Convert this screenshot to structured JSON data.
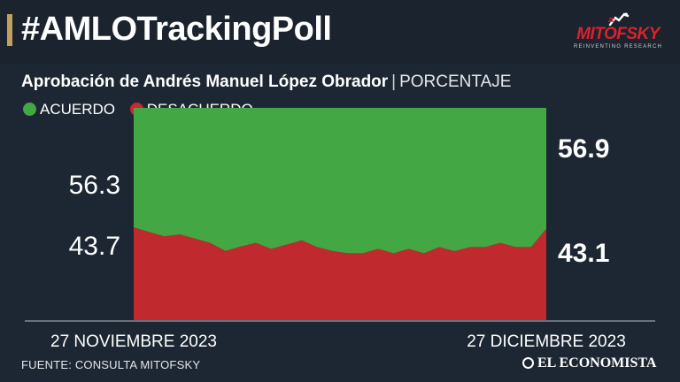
{
  "header": {
    "title": "#AMLOTrackingPoll",
    "logo": {
      "wordmark": "MITOFSKY",
      "tagline": "REINVENTING RESEARCH"
    }
  },
  "subtitle": {
    "main": "Aprobación de Andrés Manuel López Obrador",
    "separator": "|",
    "unit": "PORCENTAJE"
  },
  "legend": [
    {
      "label": "ACUERDO",
      "color": "#43a843"
    },
    {
      "label": "DESACUERDO",
      "color": "#d0262d"
    }
  ],
  "colors": {
    "background": "#1d2733",
    "header": "#1a232e",
    "accent": "#c4a15a",
    "agree": "#43a843",
    "disagree": "#c02a2f",
    "axis": "#b8bec6"
  },
  "chart_data": {
    "type": "area",
    "stacked": true,
    "ylim": [
      0,
      100
    ],
    "x_start_label": "27 NOVIEMBRE 2023",
    "x_end_label": "27 DICIEMBRE 2023",
    "series": [
      {
        "name": "ACUERDO",
        "color": "#43a843",
        "values": [
          56.3,
          58.4,
          60.5,
          59.6,
          61.6,
          63.6,
          67.4,
          65.3,
          63.6,
          66.4,
          64.4,
          62.4,
          65.6,
          67.4,
          68.5,
          68.5,
          66.4,
          68.5,
          66.4,
          68.5,
          65.6,
          67.5,
          65.6,
          65.6,
          63.6,
          65.6,
          65.6,
          56.9
        ]
      },
      {
        "name": "DESACUERDO",
        "color": "#c02a2f",
        "values": [
          43.7,
          41.6,
          39.5,
          40.4,
          38.4,
          36.4,
          32.6,
          34.7,
          36.4,
          33.6,
          35.6,
          37.6,
          34.4,
          32.6,
          31.5,
          31.5,
          33.6,
          31.5,
          33.6,
          31.5,
          34.4,
          32.5,
          34.4,
          34.4,
          36.4,
          34.4,
          34.4,
          43.1
        ]
      }
    ],
    "start_labels": {
      "agree": "56.3",
      "disagree": "43.7"
    },
    "end_labels": {
      "agree": "56.9",
      "disagree": "43.1"
    }
  },
  "footer": {
    "source": "FUENTE: CONSULTA MITOFSKY",
    "brand": "EL ECONOMISTA"
  }
}
